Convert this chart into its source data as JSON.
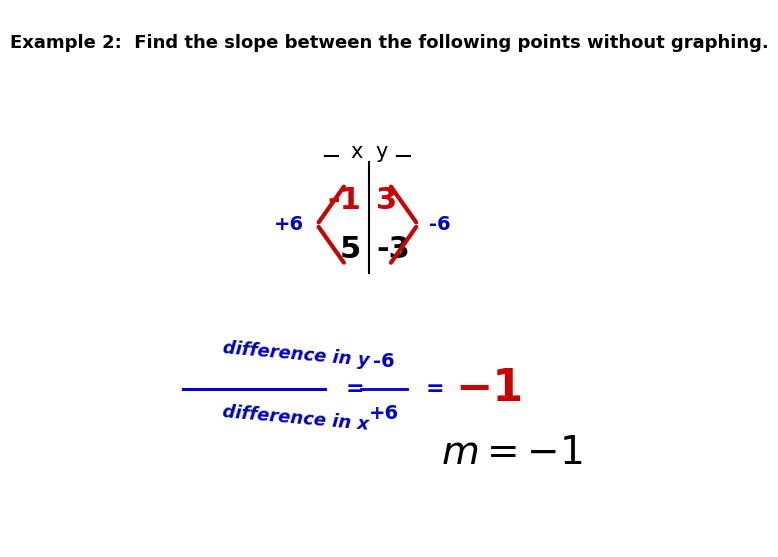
{
  "title": "Example 2:  Find the slope between the following points without graphing.",
  "bg_color": "#ffffff",
  "title_color": "#000000",
  "title_fontsize": 13,
  "col_x_label": "x",
  "col_y_label": "y",
  "row1_x": "-1",
  "row1_y": "3",
  "row2_x": "5",
  "row2_y": "-3",
  "bracket_color": "#cc0000",
  "label_plus6_left": "+6",
  "label_minus6_right": "-6",
  "label_color_blue": "#0000cc",
  "diff_numer_text": "difference in y",
  "diff_denom_text": "difference in x",
  "frac_num": "-6",
  "frac_den": "+6",
  "m_result": "$m = -1$"
}
